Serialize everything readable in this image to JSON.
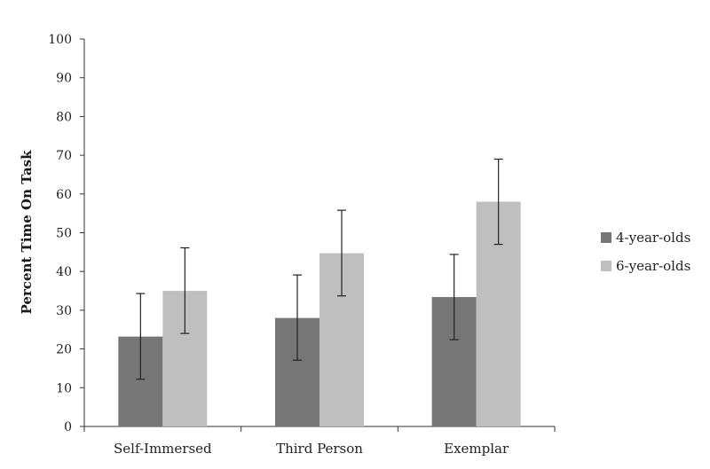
{
  "chart_data": {
    "type": "bar",
    "title": "",
    "xlabel": "",
    "ylabel": "Percent Time On Task",
    "ylim": [
      0,
      100
    ],
    "yticks": [
      0,
      10,
      20,
      30,
      40,
      50,
      60,
      70,
      80,
      90,
      100
    ],
    "categories": [
      "Self-Immersed",
      "Third Person",
      "Exemplar"
    ],
    "series": [
      {
        "name": "4-year-olds",
        "color": "#767676",
        "values": [
          23.2,
          28.0,
          33.4
        ],
        "error_low": [
          12.2,
          17.1,
          22.4
        ],
        "error_high": [
          34.3,
          39.1,
          44.4
        ]
      },
      {
        "name": "6-year-olds",
        "color": "#bfbfbf",
        "values": [
          35.0,
          44.7,
          58.0
        ],
        "error_low": [
          24.0,
          33.7,
          47.0
        ],
        "error_high": [
          46.1,
          55.8,
          69.0
        ]
      }
    ],
    "grid": false,
    "legend_position": "right"
  }
}
